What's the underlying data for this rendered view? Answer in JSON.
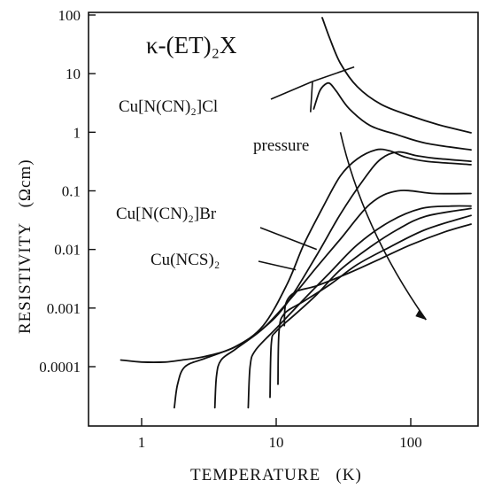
{
  "chart_data": {
    "type": "line",
    "title": "κ-(ET)₂X",
    "xlabel": "TEMPERATURE   (K)",
    "ylabel": "RESISTIVITY   (Ωcm)",
    "xscale": "log",
    "yscale": "log",
    "xlim": [
      0.5,
      300
    ],
    "ylim": [
      1e-05,
      100
    ],
    "x_ticks": [
      {
        "value": 1,
        "label": "1"
      },
      {
        "value": 10,
        "label": "10"
      },
      {
        "value": 100,
        "label": "100"
      }
    ],
    "y_ticks": [
      {
        "value": 100,
        "label": "100"
      },
      {
        "value": 10,
        "label": "10"
      },
      {
        "value": 1,
        "label": "1"
      },
      {
        "value": 0.1,
        "label": "0.1"
      },
      {
        "value": 0.01,
        "label": "0.01"
      },
      {
        "value": 0.001,
        "label": "0.001"
      },
      {
        "value": 0.0001,
        "label": "0.0001"
      }
    ],
    "annotations": [
      {
        "text": "Cu[N(CN)₂]Cl",
        "points_to": [
          [
            38,
            13
          ],
          [
            18,
            2.2
          ]
        ]
      },
      {
        "text": "pressure",
        "arrow": [
          [
            30,
            1
          ],
          [
            130,
            0.00063
          ]
        ]
      },
      {
        "text": "Cu[N(CN)₂]Br",
        "points_to": [
          [
            20,
            0.01
          ]
        ]
      },
      {
        "text": "Cu(NCS)₂",
        "points_to": [
          [
            14,
            0.0045
          ]
        ]
      }
    ],
    "series": [
      {
        "values": [
          [
            22,
            90
          ],
          [
            25,
            40
          ],
          [
            30,
            15
          ],
          [
            40,
            6
          ],
          [
            60,
            3
          ],
          [
            100,
            1.9
          ],
          [
            160,
            1.35
          ],
          [
            280,
            0.98
          ]
        ]
      },
      {
        "values": [
          [
            19,
            2.5
          ],
          [
            21,
            5
          ],
          [
            23,
            6.5
          ],
          [
            25,
            6.8
          ],
          [
            28,
            5
          ],
          [
            35,
            2.5
          ],
          [
            50,
            1.3
          ],
          [
            80,
            0.9
          ],
          [
            130,
            0.65
          ],
          [
            280,
            0.5
          ]
        ]
      },
      {
        "values": [
          [
            0.7,
            0.00013
          ],
          [
            1,
            0.00012
          ],
          [
            1.5,
            0.00012
          ],
          [
            2,
            0.00013
          ],
          [
            3,
            0.00015
          ],
          [
            5,
            0.00022
          ],
          [
            8,
            0.0005
          ],
          [
            12,
            0.0025
          ],
          [
            16,
            0.012
          ],
          [
            22,
            0.05
          ],
          [
            30,
            0.18
          ],
          [
            40,
            0.35
          ],
          [
            55,
            0.5
          ],
          [
            70,
            0.48
          ],
          [
            90,
            0.38
          ],
          [
            130,
            0.32
          ],
          [
            280,
            0.28
          ]
        ]
      },
      {
        "values": [
          [
            1.75,
            2e-05
          ],
          [
            1.85,
            5e-05
          ],
          [
            2.1,
            0.0001
          ],
          [
            3,
            0.00014
          ],
          [
            5,
            0.00022
          ],
          [
            8,
            0.00045
          ],
          [
            12,
            0.0012
          ],
          [
            20,
            0.008
          ],
          [
            30,
            0.04
          ],
          [
            45,
            0.16
          ],
          [
            60,
            0.35
          ],
          [
            80,
            0.46
          ],
          [
            110,
            0.4
          ],
          [
            150,
            0.36
          ],
          [
            280,
            0.32
          ]
        ]
      },
      {
        "values": [
          [
            3.5,
            2e-05
          ],
          [
            3.6,
            7e-05
          ],
          [
            3.9,
            0.00013
          ],
          [
            5,
            0.0002
          ],
          [
            8,
            0.00045
          ],
          [
            13,
            0.0015
          ],
          [
            20,
            0.005
          ],
          [
            30,
            0.015
          ],
          [
            50,
            0.06
          ],
          [
            80,
            0.1
          ],
          [
            150,
            0.09
          ],
          [
            280,
            0.09
          ]
        ]
      },
      {
        "values": [
          [
            6.2,
            2e-05
          ],
          [
            6.4,
            0.0001
          ],
          [
            7,
            0.00019
          ],
          [
            10,
            0.00045
          ],
          [
            15,
            0.0012
          ],
          [
            25,
            0.004
          ],
          [
            40,
            0.012
          ],
          [
            70,
            0.03
          ],
          [
            120,
            0.05
          ],
          [
            200,
            0.055
          ],
          [
            280,
            0.055
          ]
        ]
      },
      {
        "values": [
          [
            9,
            3e-05
          ],
          [
            9.2,
            0.00025
          ],
          [
            10,
            0.0004
          ],
          [
            14,
            0.0008
          ],
          [
            20,
            0.0017
          ],
          [
            30,
            0.0045
          ],
          [
            50,
            0.011
          ],
          [
            80,
            0.022
          ],
          [
            130,
            0.037
          ],
          [
            280,
            0.05
          ]
        ]
      },
      {
        "values": [
          [
            10.3,
            5e-05
          ],
          [
            10.5,
            0.0004
          ],
          [
            11.5,
            0.0008
          ],
          [
            16,
            0.0013
          ],
          [
            25,
            0.0025
          ],
          [
            40,
            0.0055
          ],
          [
            70,
            0.011
          ],
          [
            130,
            0.022
          ],
          [
            280,
            0.038
          ]
        ]
      },
      {
        "values": [
          [
            11.5,
            0.0005
          ],
          [
            11.8,
            0.0012
          ],
          [
            14,
            0.0019
          ],
          [
            20,
            0.0024
          ],
          [
            35,
            0.004
          ],
          [
            60,
            0.007
          ],
          [
            100,
            0.012
          ],
          [
            180,
            0.02
          ],
          [
            280,
            0.027
          ]
        ]
      }
    ]
  }
}
